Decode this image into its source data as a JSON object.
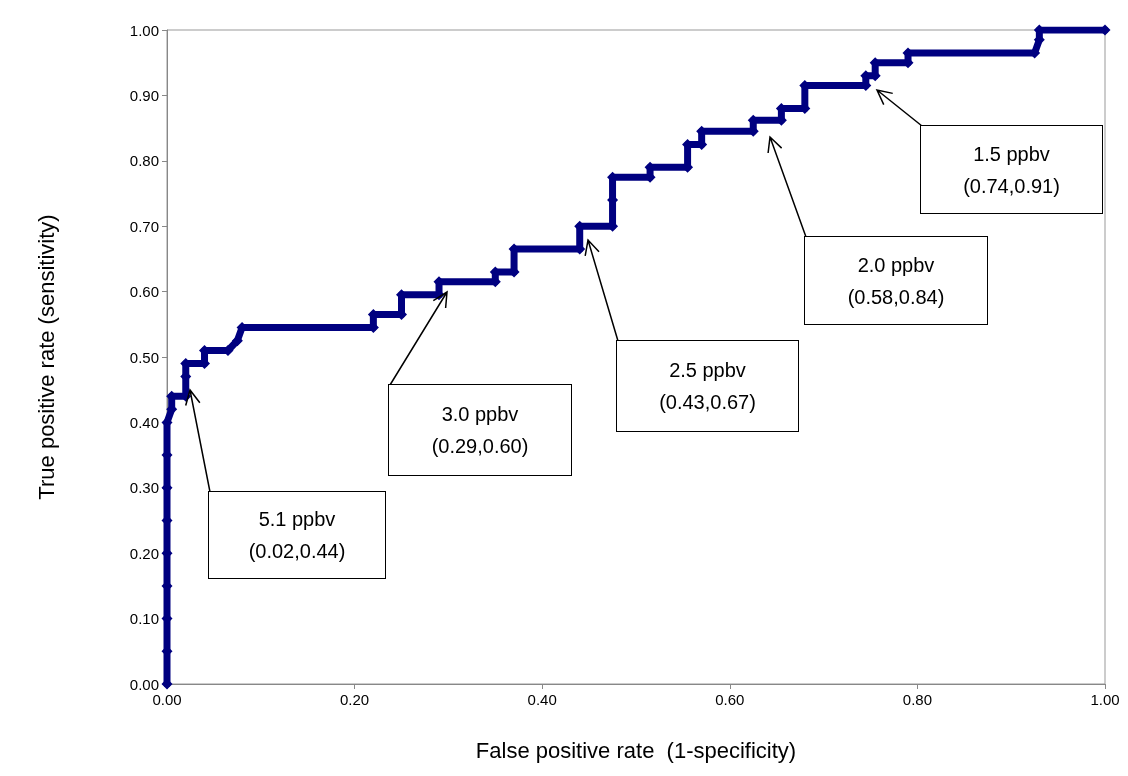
{
  "chart_data": {
    "type": "line",
    "xlabel": "False positive rate  (1-specificity)",
    "ylabel": "True positive rate (sensitivity)",
    "x": [
      0,
      0,
      0,
      0,
      0,
      0,
      0,
      0,
      0,
      0.005,
      0.005,
      0.02,
      0.02,
      0.02,
      0.04,
      0.04,
      0.065,
      0.075,
      0.08,
      0.22,
      0.22,
      0.25,
      0.25,
      0.29,
      0.29,
      0.35,
      0.35,
      0.37,
      0.37,
      0.44,
      0.44,
      0.475,
      0.475,
      0.475,
      0.515,
      0.515,
      0.555,
      0.555,
      0.57,
      0.57,
      0.625,
      0.625,
      0.655,
      0.655,
      0.68,
      0.68,
      0.745,
      0.745,
      0.755,
      0.755,
      0.79,
      0.79,
      0.925,
      0.93,
      0.93,
      1.0
    ],
    "series": [
      {
        "color": "#000080",
        "values": [
          0,
          0.05,
          0.1,
          0.15,
          0.2,
          0.25,
          0.3,
          0.35,
          0.4,
          0.42,
          0.44,
          0.44,
          0.47,
          0.49,
          0.49,
          0.51,
          0.51,
          0.525,
          0.545,
          0.545,
          0.565,
          0.565,
          0.595,
          0.595,
          0.615,
          0.615,
          0.63,
          0.63,
          0.665,
          0.665,
          0.7,
          0.7,
          0.74,
          0.775,
          0.775,
          0.79,
          0.79,
          0.825,
          0.825,
          0.845,
          0.845,
          0.862,
          0.862,
          0.88,
          0.88,
          0.915,
          0.915,
          0.93,
          0.93,
          0.95,
          0.95,
          0.965,
          0.965,
          0.985,
          1.0,
          1.0
        ]
      }
    ],
    "marker": "diamond",
    "line_style": "solid",
    "grid": false,
    "xlim": [
      0,
      1
    ],
    "ylim": [
      0,
      1
    ],
    "xticks": [
      {
        "value": 0,
        "label": "0.00"
      },
      {
        "value": 0.2,
        "label": "0.20"
      },
      {
        "value": 0.4,
        "label": "0.40"
      },
      {
        "value": 0.6,
        "label": "0.60"
      },
      {
        "value": 0.8,
        "label": "0.80"
      },
      {
        "value": 1,
        "label": "1.00"
      }
    ],
    "yticks": [
      {
        "value": 0,
        "label": "0.00"
      },
      {
        "value": 0.1,
        "label": "0.10"
      },
      {
        "value": 0.2,
        "label": "0.20"
      },
      {
        "value": 0.3,
        "label": "0.30"
      },
      {
        "value": 0.4,
        "label": "0.40"
      },
      {
        "value": 0.5,
        "label": "0.50"
      },
      {
        "value": 0.6,
        "label": "0.60"
      },
      {
        "value": 0.7,
        "label": "0.70"
      },
      {
        "value": 0.8,
        "label": "0.80"
      },
      {
        "value": 0.9,
        "label": "0.90"
      },
      {
        "value": 1,
        "label": "1.00"
      }
    ],
    "annotations": [
      "5.1 ppbv\n(0.02,0.44)",
      "3.0 ppbv\n(0.29,0.60)",
      "2.5 ppbv\n(0.43,0.67)",
      "2.0 ppbv\n(0.58,0.84)",
      "1.5 ppbv\n(0.74,0.91)"
    ]
  }
}
